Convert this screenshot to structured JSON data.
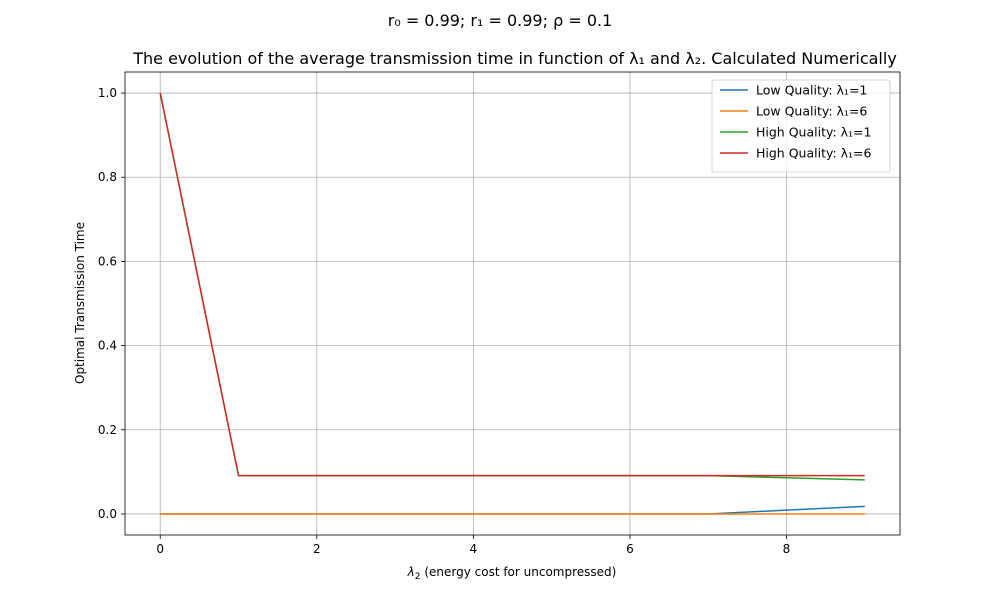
{
  "chart_data": {
    "type": "line",
    "suptitle": "r₀ = 0.99; r₁ = 0.99; ρ = 0.1",
    "title": "The evolution of the average transmission time in function of λ₁ and λ₂. Calculated Numerically",
    "xlabel_symbol": "λ",
    "xlabel_sub": "2",
    "xlabel_rest": " (energy cost for uncompressed)",
    "ylabel": "Optimal Transmission Time",
    "xlim": [
      -0.45,
      9.45
    ],
    "ylim": [
      -0.05,
      1.05
    ],
    "x_ticks": [
      0,
      2,
      4,
      6,
      8
    ],
    "y_ticks": [
      0.0,
      0.2,
      0.4,
      0.6,
      0.8,
      1.0
    ],
    "x_tick_labels": [
      "0",
      "2",
      "4",
      "6",
      "8"
    ],
    "y_tick_labels": [
      "0.0",
      "0.2",
      "0.4",
      "0.6",
      "0.8",
      "1.0"
    ],
    "grid": true,
    "legend_position": "top-right",
    "x": [
      0,
      1,
      2,
      3,
      4,
      5,
      6,
      7,
      8,
      9
    ],
    "series": [
      {
        "name": "Low Quality: λ₁=1",
        "color": "#1f77b4",
        "values": [
          0,
          0,
          0,
          0,
          0,
          0,
          0,
          0,
          0.009,
          0.018
        ]
      },
      {
        "name": "Low Quality: λ₁=6",
        "color": "#ff7f0e",
        "values": [
          0,
          0,
          0,
          0,
          0,
          0,
          0,
          0,
          0,
          0
        ]
      },
      {
        "name": "High Quality: λ₁=1",
        "color": "#2ca02c",
        "values": [
          1.0,
          0.091,
          0.091,
          0.091,
          0.091,
          0.091,
          0.091,
          0.091,
          0.086,
          0.081
        ]
      },
      {
        "name": "High Quality: λ₁=6",
        "color": "#d62728",
        "values": [
          1.0,
          0.091,
          0.091,
          0.091,
          0.091,
          0.091,
          0.091,
          0.091,
          0.091,
          0.091
        ]
      }
    ]
  }
}
